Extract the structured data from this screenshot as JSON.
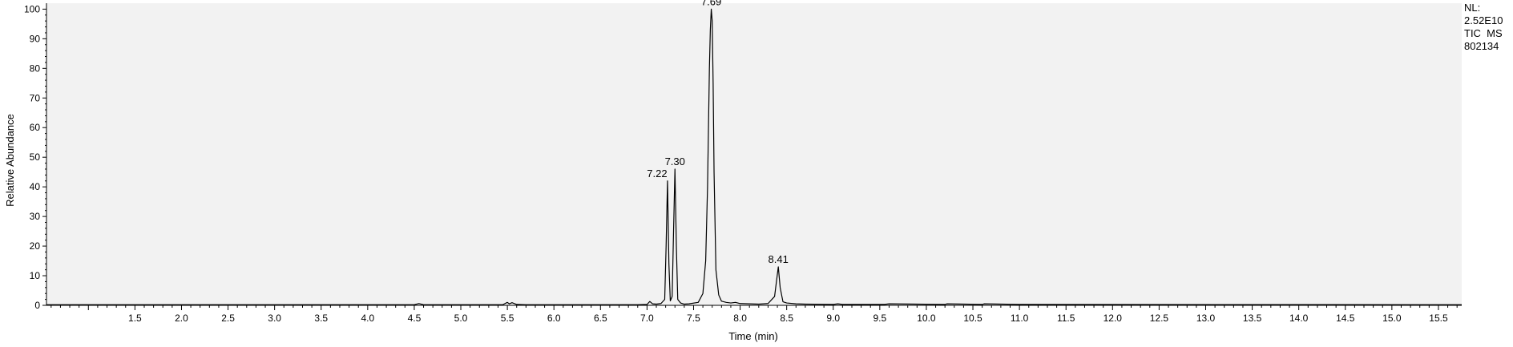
{
  "chart_data": {
    "type": "line",
    "title": "",
    "xlabel": "Time (min)",
    "ylabel": "Relative Abundance",
    "xlim": [
      0.55,
      15.75
    ],
    "ylim": [
      0,
      102
    ],
    "x_ticks": [
      "1.5",
      "2.0",
      "2.5",
      "3.0",
      "3.5",
      "4.0",
      "4.5",
      "5.0",
      "5.5",
      "6.0",
      "6.5",
      "7.0",
      "7.5",
      "8.0",
      "8.5",
      "9.0",
      "9.5",
      "10.0",
      "10.5",
      "11.0",
      "11.5",
      "12.0",
      "12.5",
      "13.0",
      "13.5",
      "14.0",
      "14.5",
      "15.0",
      "15.5"
    ],
    "y_ticks": [
      "0",
      "10",
      "20",
      "30",
      "40",
      "50",
      "60",
      "70",
      "80",
      "90",
      "100"
    ],
    "grid": false,
    "background": "#f2f2f2",
    "line_color": "#000000",
    "series": [
      {
        "x": [
          0.55,
          4.5,
          4.55,
          4.6,
          5.45,
          5.5,
          5.52,
          5.55,
          5.6,
          5.7,
          6.9,
          7.0,
          7.03,
          7.06,
          7.1,
          7.15,
          7.19,
          7.205,
          7.22,
          7.235,
          7.25,
          7.27,
          7.285,
          7.3,
          7.315,
          7.33,
          7.36,
          7.4,
          7.45,
          7.55,
          7.6,
          7.63,
          7.65,
          7.67,
          7.68,
          7.69,
          7.7,
          7.71,
          7.72,
          7.74,
          7.77,
          7.8,
          7.85,
          7.9,
          7.95,
          8.0,
          8.1,
          8.2,
          8.3,
          8.37,
          8.39,
          8.41,
          8.43,
          8.46,
          8.5,
          8.6,
          8.7,
          9.0,
          9.05,
          9.1,
          9.55,
          9.6,
          10.2,
          10.22,
          10.6,
          10.62,
          11.0,
          15.75
        ],
        "y": [
          0.2,
          0.2,
          0.6,
          0.2,
          0.2,
          1.0,
          0.5,
          0.9,
          0.3,
          0.2,
          0.2,
          0.3,
          1.3,
          0.5,
          0.4,
          0.6,
          2.0,
          20.0,
          42.0,
          14.0,
          1.5,
          3.0,
          25.0,
          46.0,
          20.0,
          2.0,
          0.8,
          0.4,
          0.5,
          1.0,
          4.0,
          15.0,
          40.0,
          80.0,
          93.0,
          100.0,
          96.0,
          75.0,
          45.0,
          12.0,
          3.5,
          1.4,
          1.0,
          0.8,
          1.0,
          0.6,
          0.5,
          0.4,
          0.6,
          3.0,
          8.0,
          13.0,
          6.0,
          1.2,
          0.8,
          0.5,
          0.4,
          0.3,
          0.5,
          0.3,
          0.3,
          0.5,
          0.3,
          0.5,
          0.3,
          0.5,
          0.3,
          0.2
        ]
      }
    ],
    "annotations": [
      {
        "label": "7.69",
        "x": 7.69,
        "y": 100.0
      },
      {
        "label": "7.30",
        "x": 7.3,
        "y": 46.0
      },
      {
        "label": "7.22",
        "x": 7.22,
        "y": 42.0
      },
      {
        "label": "8.41",
        "x": 8.41,
        "y": 13.0
      }
    ]
  },
  "info": {
    "nl_label": "NL:",
    "nl_value": "2.52E10",
    "filter": "TIC  MS",
    "file": "802134"
  }
}
